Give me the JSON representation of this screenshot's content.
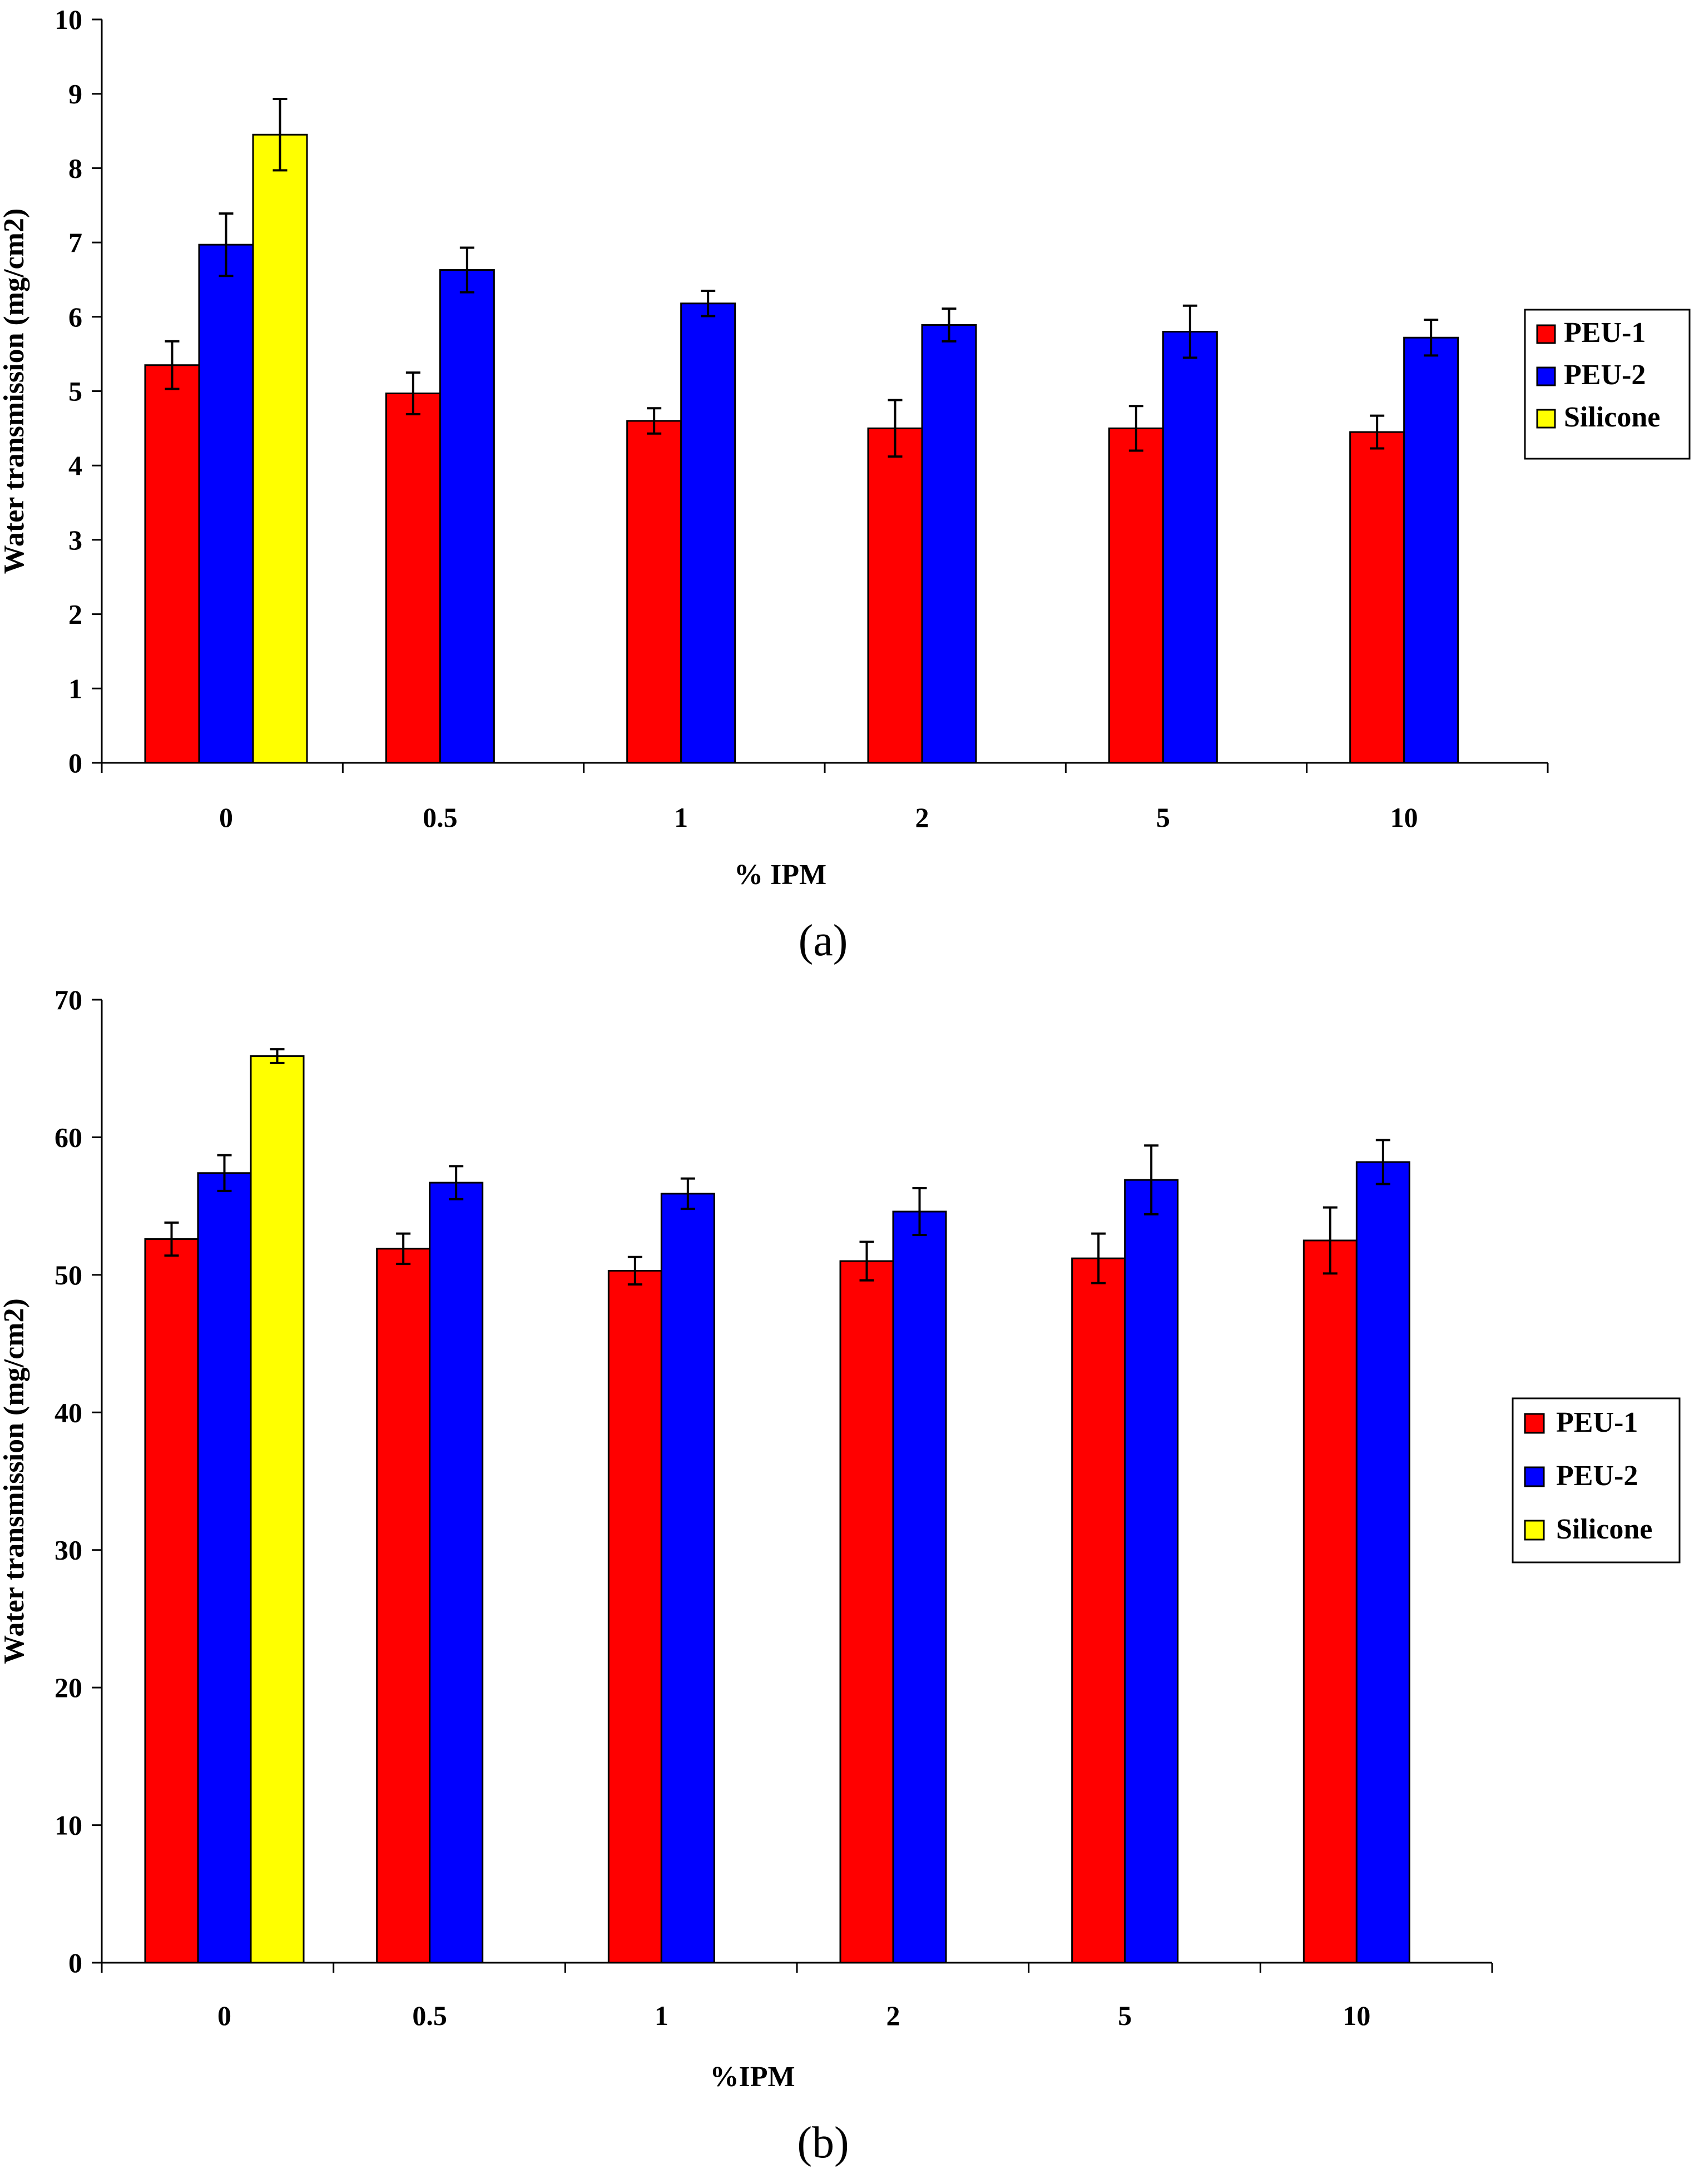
{
  "chart_data": [
    {
      "type": "bar",
      "panel_label": "(a)",
      "title": "",
      "xlabel": "% IPM",
      "ylabel": "Water transmission (mg/cm2)",
      "ylim": [
        0,
        10
      ],
      "yticks": [
        "0",
        "1",
        "2",
        "3",
        "4",
        "5",
        "6",
        "7",
        "8",
        "9",
        "10"
      ],
      "categories": [
        "0",
        "0.5",
        "1",
        "2",
        "5",
        "10"
      ],
      "legend_position": "right",
      "series": [
        {
          "name": "PEU-1",
          "color": "#ff0000",
          "values": [
            5.35,
            4.97,
            4.6,
            4.5,
            4.5,
            4.45
          ],
          "errors": [
            0.32,
            0.28,
            0.17,
            0.38,
            0.3,
            0.22
          ]
        },
        {
          "name": "PEU-2",
          "color": "#0000ff",
          "values": [
            6.97,
            6.63,
            6.18,
            5.89,
            5.8,
            5.72
          ],
          "errors": [
            0.42,
            0.3,
            0.17,
            0.22,
            0.35,
            0.24
          ]
        },
        {
          "name": "Silicone",
          "color": "#ffff00",
          "values": [
            8.45,
            null,
            null,
            null,
            null,
            null
          ],
          "errors": [
            0.48,
            null,
            null,
            null,
            null,
            null
          ]
        }
      ]
    },
    {
      "type": "bar",
      "panel_label": "(b)",
      "title": "",
      "xlabel": "%IPM",
      "ylabel": "Water transmission (mg/cm2)",
      "ylim": [
        0,
        70
      ],
      "yticks": [
        "0",
        "10",
        "20",
        "30",
        "40",
        "50",
        "60",
        "70"
      ],
      "categories": [
        "0",
        "0.5",
        "1",
        "2",
        "5",
        "10"
      ],
      "legend_position": "right",
      "series": [
        {
          "name": "PEU-1",
          "color": "#ff0000",
          "values": [
            52.6,
            51.9,
            50.3,
            51.0,
            51.2,
            52.5
          ],
          "errors": [
            1.2,
            1.1,
            1.0,
            1.4,
            1.8,
            2.4
          ]
        },
        {
          "name": "PEU-2",
          "color": "#0000ff",
          "values": [
            57.4,
            56.7,
            55.9,
            54.6,
            56.9,
            58.2
          ],
          "errors": [
            1.3,
            1.2,
            1.1,
            1.7,
            2.5,
            1.6
          ]
        },
        {
          "name": "Silicone",
          "color": "#ffff00",
          "values": [
            65.9,
            null,
            null,
            null,
            null,
            null
          ],
          "errors": [
            0.5,
            null,
            null,
            null,
            null,
            null
          ]
        }
      ]
    }
  ]
}
